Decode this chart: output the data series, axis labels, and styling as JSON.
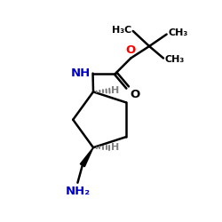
{
  "bg_color": "#ffffff",
  "bond_color": "#000000",
  "N_color": "#0000cd",
  "O_color": "#ff0000",
  "H_color": "#808080",
  "figsize": [
    2.5,
    2.5
  ],
  "dpi": 100,
  "xlim": [
    0,
    10
  ],
  "ylim": [
    0,
    10
  ]
}
